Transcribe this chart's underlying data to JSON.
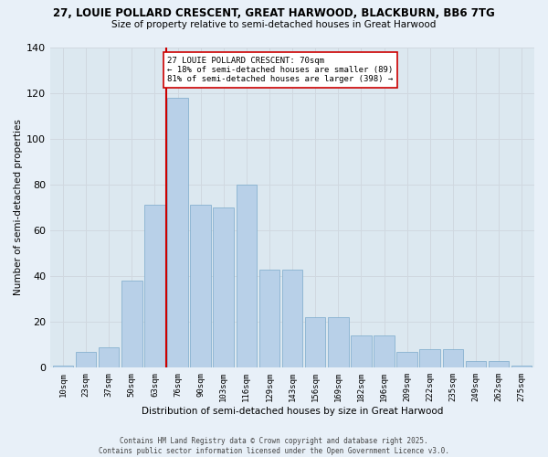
{
  "title": "27, LOUIE POLLARD CRESCENT, GREAT HARWOOD, BLACKBURN, BB6 7TG",
  "subtitle": "Size of property relative to semi-detached houses in Great Harwood",
  "xlabel": "Distribution of semi-detached houses by size in Great Harwood",
  "ylabel": "Number of semi-detached properties",
  "bar_labels": [
    "10sqm",
    "23sqm",
    "37sqm",
    "50sqm",
    "63sqm",
    "76sqm",
    "90sqm",
    "103sqm",
    "116sqm",
    "129sqm",
    "143sqm",
    "156sqm",
    "169sqm",
    "182sqm",
    "196sqm",
    "209sqm",
    "222sqm",
    "235sqm",
    "249sqm",
    "262sqm",
    "275sqm"
  ],
  "bar_values": [
    1,
    7,
    9,
    38,
    71,
    118,
    71,
    70,
    80,
    43,
    43,
    22,
    22,
    14,
    14,
    7,
    8,
    8,
    3,
    3,
    1
  ],
  "bar_color": "#b8d0e8",
  "bar_edge_color": "#7aaaca",
  "property_line_label": "27 LOUIE POLLARD CRESCENT: 70sqm",
  "pct_smaller": "18% of semi-detached houses are smaller (89)",
  "pct_larger": "81% of semi-detached houses are larger (398)",
  "annotation_box_color": "#ffffff",
  "annotation_box_edge": "#cc0000",
  "vline_color": "#cc0000",
  "ylim": [
    0,
    140
  ],
  "yticks": [
    0,
    20,
    40,
    60,
    80,
    100,
    120,
    140
  ],
  "grid_color": "#d0d8e0",
  "bg_color": "#dce8f0",
  "fig_bg_color": "#e8f0f8",
  "footer_line1": "Contains HM Land Registry data © Crown copyright and database right 2025.",
  "footer_line2": "Contains public sector information licensed under the Open Government Licence v3.0."
}
